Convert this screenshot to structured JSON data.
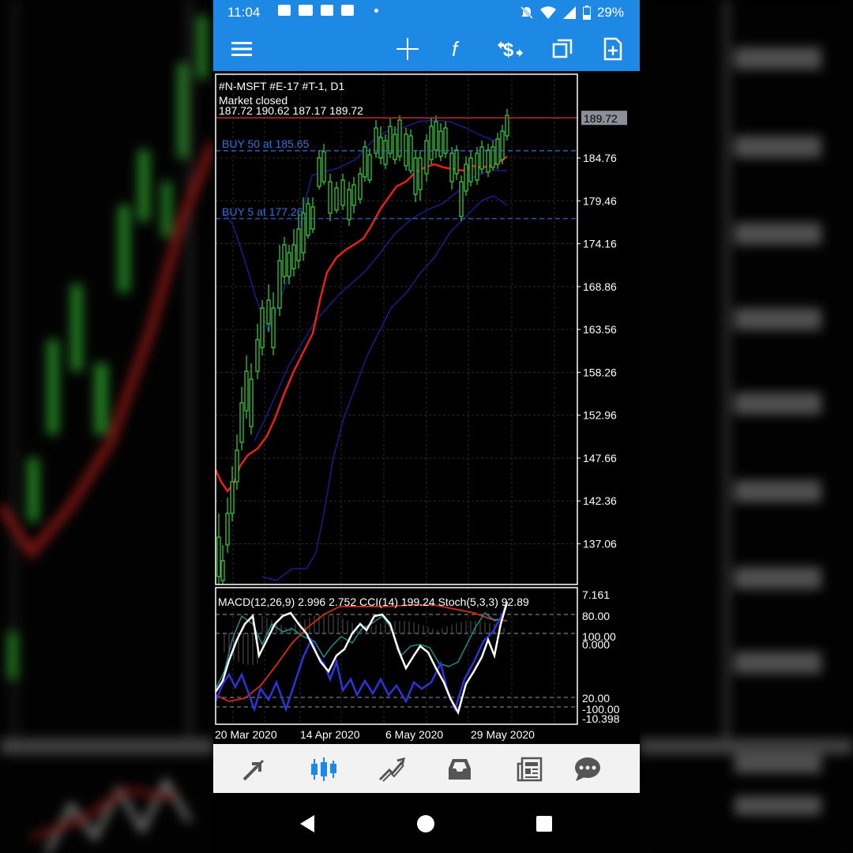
{
  "status_bar": {
    "time": "11:04",
    "battery": "29%",
    "icons": [
      "image-icon",
      "youtube-icon",
      "gmail-icon",
      "gallery-icon",
      "notification-dot",
      "mute-icon",
      "wifi-icon",
      "signal-icon",
      "battery-icon"
    ]
  },
  "toolbar": {
    "items": [
      "menu-icon",
      "crosshair-icon",
      "indicators-icon",
      "trade-icon",
      "windows-icon",
      "new-order-icon"
    ]
  },
  "chart": {
    "symbol_line": "#N-MSFT #E-17 #T-1, D1",
    "status": "Market closed",
    "ohlc": "187.72 190.62 187.17 189.72",
    "current_price": "189.72",
    "orders": [
      {
        "label": "BUY 50 at 185.65",
        "price": 185.65
      },
      {
        "label": "BUY 5 at 177.26",
        "price": 177.26
      }
    ],
    "price_ticks": [
      "184.76",
      "179.46",
      "174.16",
      "168.86",
      "163.56",
      "158.26",
      "152.96",
      "147.66",
      "142.36",
      "137.06"
    ],
    "date_ticks": [
      "20 Mar 2020",
      "14 Apr 2020",
      "6 May 2020",
      "29 May 2020"
    ],
    "indicator_line": "MACD(12,26,9) 2.996 2.752 CCI(14) 199.24 Stoch(5,3,3) 92.89",
    "indicator_ticks": [
      "7.161",
      "80.00",
      "100.00",
      "0.000",
      "20.00",
      "-100.00",
      "-10.398"
    ],
    "colors": {
      "bullish": "#38d33a",
      "moving_average": "#e8201c",
      "bollinger": "#1c1c86",
      "order_line": "#3b6fd4",
      "price_tag_bg": "#8a8f99",
      "stoch_main": "#ffffff",
      "cci": "#2b35d8",
      "macd_signal": "#c02a1c",
      "macd_line": "#1e8c88"
    }
  },
  "bottom_nav": {
    "items": [
      "quotes-icon",
      "chart-icon",
      "trade-icon",
      "history-icon",
      "news-icon",
      "chat-icon"
    ],
    "active": "chart-icon"
  },
  "system_nav": [
    "back-icon",
    "home-icon",
    "recents-icon"
  ]
}
